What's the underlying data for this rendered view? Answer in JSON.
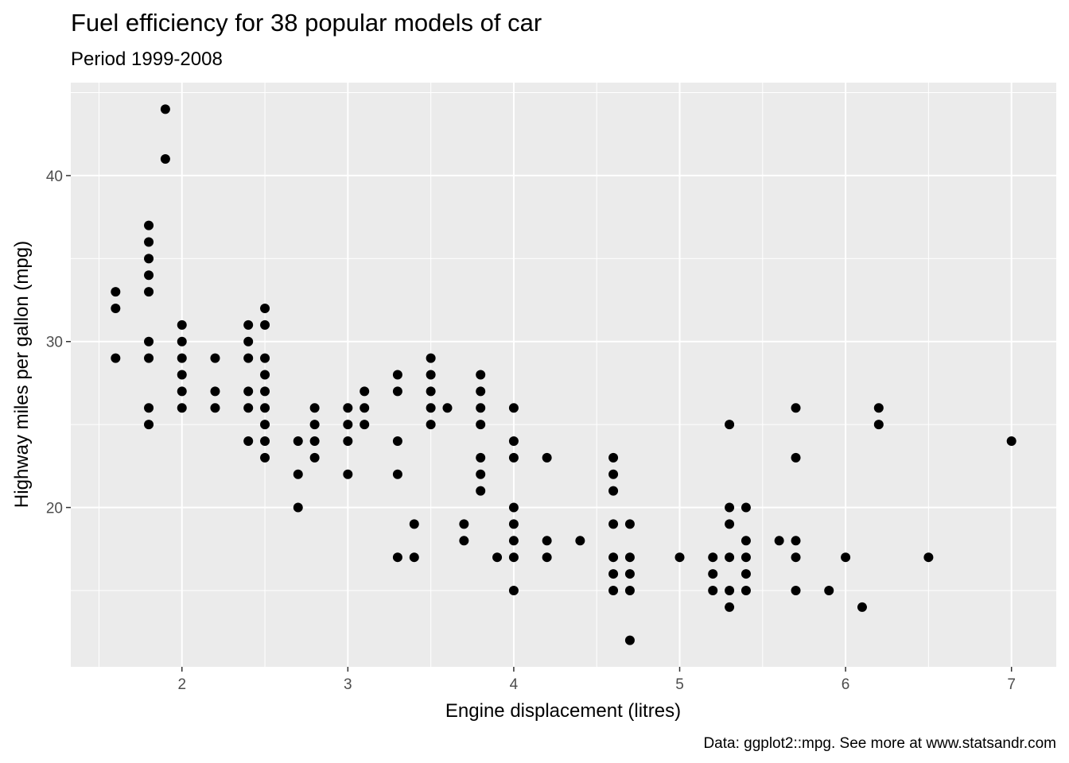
{
  "colors": {
    "panel_background": "#ebebeb",
    "grid_line": "#ffffff",
    "point": "#000000",
    "tick_text": "#4d4d4d",
    "tick_mark": "#333333"
  },
  "chart_data": {
    "type": "scatter",
    "title": "Fuel efficiency for 38 popular models of car",
    "subtitle": "Period 1999-2008",
    "xlabel": "Engine displacement (litres)",
    "ylabel": "Highway miles per gallon (mpg)",
    "caption": "Data: ggplot2::mpg. See more at www.statsandr.com",
    "xlim": [
      1.33,
      7.27
    ],
    "ylim": [
      10.4,
      45.6
    ],
    "x_ticks": [
      2,
      3,
      4,
      5,
      6,
      7
    ],
    "x_tick_labels": [
      "2",
      "3",
      "4",
      "5",
      "6",
      "7"
    ],
    "x_minor_breaks": [
      1.5,
      2.5,
      3.5,
      4.5,
      5.5,
      6.5
    ],
    "y_ticks": [
      20,
      30,
      40
    ],
    "y_tick_labels": [
      "20",
      "30",
      "40"
    ],
    "y_minor_breaks": [
      15,
      25,
      35,
      45
    ],
    "grid": true,
    "legend": "none",
    "points": [
      [
        1.6,
        33
      ],
      [
        1.6,
        32
      ],
      [
        1.6,
        29
      ],
      [
        1.8,
        37
      ],
      [
        1.8,
        36
      ],
      [
        1.8,
        35
      ],
      [
        1.8,
        34
      ],
      [
        1.8,
        33
      ],
      [
        1.8,
        30
      ],
      [
        1.8,
        29
      ],
      [
        1.8,
        26
      ],
      [
        1.8,
        25
      ],
      [
        1.9,
        44
      ],
      [
        1.9,
        41
      ],
      [
        2.0,
        31
      ],
      [
        2.0,
        30
      ],
      [
        2.0,
        29
      ],
      [
        2.0,
        28
      ],
      [
        2.0,
        27
      ],
      [
        2.0,
        26
      ],
      [
        2.2,
        29
      ],
      [
        2.2,
        27
      ],
      [
        2.2,
        26
      ],
      [
        2.4,
        31
      ],
      [
        2.4,
        30
      ],
      [
        2.4,
        29
      ],
      [
        2.4,
        27
      ],
      [
        2.4,
        26
      ],
      [
        2.4,
        24
      ],
      [
        2.5,
        32
      ],
      [
        2.5,
        31
      ],
      [
        2.5,
        29
      ],
      [
        2.5,
        28
      ],
      [
        2.5,
        27
      ],
      [
        2.5,
        26
      ],
      [
        2.5,
        25
      ],
      [
        2.5,
        24
      ],
      [
        2.5,
        23
      ],
      [
        2.7,
        24
      ],
      [
        2.7,
        22
      ],
      [
        2.7,
        20
      ],
      [
        2.8,
        26
      ],
      [
        2.8,
        25
      ],
      [
        2.8,
        24
      ],
      [
        2.8,
        23
      ],
      [
        3.0,
        26
      ],
      [
        3.0,
        25
      ],
      [
        3.0,
        24
      ],
      [
        3.0,
        22
      ],
      [
        3.1,
        27
      ],
      [
        3.1,
        26
      ],
      [
        3.1,
        25
      ],
      [
        3.3,
        28
      ],
      [
        3.3,
        27
      ],
      [
        3.3,
        24
      ],
      [
        3.3,
        22
      ],
      [
        3.3,
        17
      ],
      [
        3.4,
        19
      ],
      [
        3.4,
        17
      ],
      [
        3.5,
        29
      ],
      [
        3.5,
        28
      ],
      [
        3.5,
        27
      ],
      [
        3.5,
        26
      ],
      [
        3.5,
        25
      ],
      [
        3.6,
        26
      ],
      [
        3.7,
        19
      ],
      [
        3.7,
        18
      ],
      [
        3.8,
        28
      ],
      [
        3.8,
        27
      ],
      [
        3.8,
        26
      ],
      [
        3.8,
        25
      ],
      [
        3.8,
        23
      ],
      [
        3.8,
        22
      ],
      [
        3.8,
        21
      ],
      [
        3.9,
        17
      ],
      [
        4.0,
        26
      ],
      [
        4.0,
        24
      ],
      [
        4.0,
        23
      ],
      [
        4.0,
        20
      ],
      [
        4.0,
        19
      ],
      [
        4.0,
        18
      ],
      [
        4.0,
        17
      ],
      [
        4.0,
        15
      ],
      [
        4.2,
        23
      ],
      [
        4.2,
        18
      ],
      [
        4.2,
        17
      ],
      [
        4.4,
        18
      ],
      [
        4.6,
        23
      ],
      [
        4.6,
        22
      ],
      [
        4.6,
        21
      ],
      [
        4.6,
        19
      ],
      [
        4.6,
        17
      ],
      [
        4.6,
        16
      ],
      [
        4.6,
        15
      ],
      [
        4.7,
        19
      ],
      [
        4.7,
        17
      ],
      [
        4.7,
        16
      ],
      [
        4.7,
        15
      ],
      [
        4.7,
        12
      ],
      [
        5.0,
        17
      ],
      [
        5.2,
        17
      ],
      [
        5.2,
        16
      ],
      [
        5.2,
        15
      ],
      [
        5.3,
        25
      ],
      [
        5.3,
        20
      ],
      [
        5.3,
        19
      ],
      [
        5.3,
        17
      ],
      [
        5.3,
        15
      ],
      [
        5.3,
        14
      ],
      [
        5.4,
        20
      ],
      [
        5.4,
        18
      ],
      [
        5.4,
        17
      ],
      [
        5.4,
        16
      ],
      [
        5.4,
        15
      ],
      [
        5.6,
        18
      ],
      [
        5.7,
        26
      ],
      [
        5.7,
        23
      ],
      [
        5.7,
        18
      ],
      [
        5.7,
        17
      ],
      [
        5.7,
        15
      ],
      [
        5.9,
        15
      ],
      [
        6.0,
        17
      ],
      [
        6.1,
        14
      ],
      [
        6.2,
        26
      ],
      [
        6.2,
        25
      ],
      [
        6.5,
        17
      ],
      [
        7.0,
        24
      ]
    ]
  }
}
